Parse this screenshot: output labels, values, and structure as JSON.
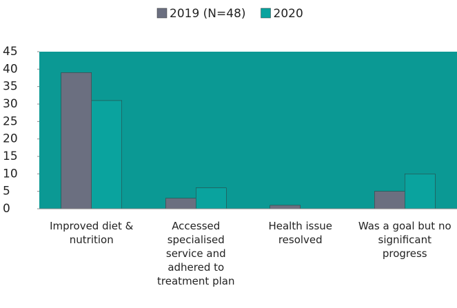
{
  "chart_data": {
    "type": "bar",
    "categories": [
      "Improved diet & nutrition",
      "Accessed specialised service and adhered to treatment plan",
      "Health issue resolved",
      "Was a goal but no significant progress"
    ],
    "series": [
      {
        "name": "2019 (N=48)",
        "color": "#6b6f80",
        "values": [
          39,
          3,
          1,
          5
        ]
      },
      {
        "name": "2020",
        "color": "#0aa39e",
        "values": [
          31,
          6,
          0,
          10
        ]
      }
    ],
    "ylim": [
      0,
      45
    ],
    "yticks": [
      0,
      5,
      10,
      15,
      20,
      25,
      30,
      35,
      40,
      45
    ],
    "plot_background": "#0b9994",
    "legend": "top"
  }
}
